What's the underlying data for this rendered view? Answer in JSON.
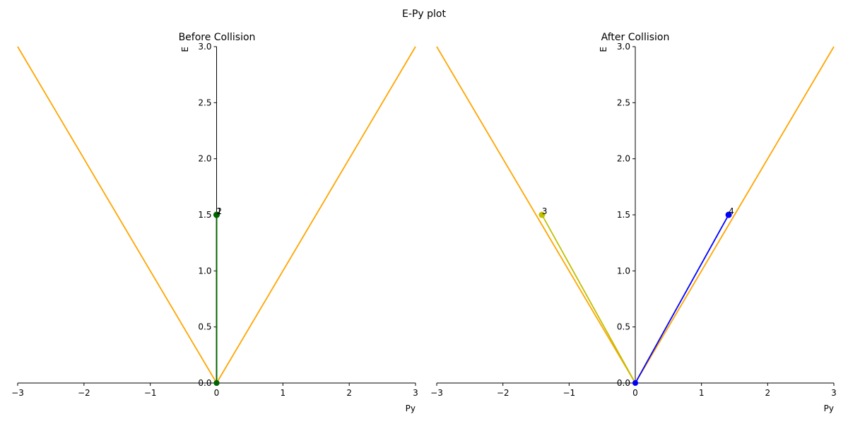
{
  "suptitle": "E-Py plot",
  "colors": {
    "light_cone": "#FFA500",
    "axis": "#000000"
  },
  "chart_data": [
    {
      "type": "line",
      "title": "Before Collision",
      "xlabel": "Py",
      "ylabel": "E",
      "xlim": [
        -3,
        3
      ],
      "ylim": [
        0,
        3
      ],
      "xticks": [
        -3,
        -2,
        -1,
        0,
        1,
        2,
        3
      ],
      "yticks": [
        0,
        0.5,
        1.0,
        1.5,
        2.0,
        2.5,
        3.0
      ],
      "xtick_labels": [
        "−3",
        "−2",
        "−1",
        "0",
        "1",
        "2",
        "3"
      ],
      "ytick_labels": [
        "0.0",
        "0.5",
        "1.0",
        "1.5",
        "2.0",
        "2.5",
        "3.0"
      ],
      "grid": false,
      "light_cone": [
        {
          "x": [
            -3,
            0
          ],
          "y": [
            3,
            0
          ],
          "color": "#FFA500"
        },
        {
          "x": [
            0,
            3
          ],
          "y": [
            0,
            3
          ],
          "color": "#FFA500"
        }
      ],
      "vectors": [
        {
          "label": "1",
          "py": 0,
          "e": 1.5,
          "color": "#1E7B1E"
        },
        {
          "label": "2",
          "py": 0,
          "e": 1.5,
          "color": "#006400"
        }
      ]
    },
    {
      "type": "line",
      "title": "After Collision",
      "xlabel": "Py",
      "ylabel": "E",
      "xlim": [
        -3,
        3
      ],
      "ylim": [
        0,
        3
      ],
      "xticks": [
        -3,
        -2,
        -1,
        0,
        1,
        2,
        3
      ],
      "yticks": [
        0,
        0.5,
        1.0,
        1.5,
        2.0,
        2.5,
        3.0
      ],
      "xtick_labels": [
        "−3",
        "−2",
        "−1",
        "0",
        "1",
        "2",
        "3"
      ],
      "ytick_labels": [
        "0.0",
        "0.5",
        "1.0",
        "1.5",
        "2.0",
        "2.5",
        "3.0"
      ],
      "grid": false,
      "light_cone": [
        {
          "x": [
            -3,
            0
          ],
          "y": [
            3,
            0
          ],
          "color": "#FFA500"
        },
        {
          "x": [
            0,
            3
          ],
          "y": [
            0,
            3
          ],
          "color": "#FFA500"
        }
      ],
      "vectors": [
        {
          "label": "3",
          "py": -1.41,
          "e": 1.5,
          "color": "#BFBF00"
        },
        {
          "label": "4",
          "py": 1.41,
          "e": 1.5,
          "color": "#0000FF"
        }
      ]
    }
  ]
}
